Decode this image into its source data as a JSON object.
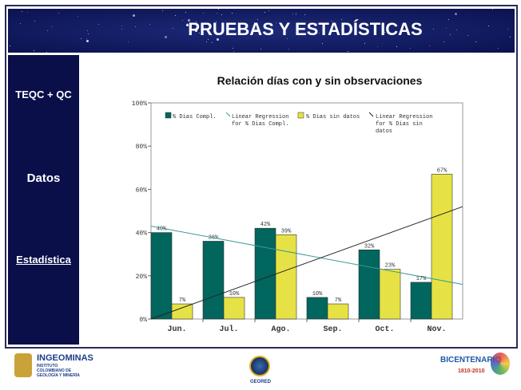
{
  "header": {
    "title": "PRUEBAS  Y ESTADÍSTICAS"
  },
  "sidebar": {
    "items": [
      {
        "label": "TEQC + QC"
      },
      {
        "label": "Datos"
      },
      {
        "label": "Estadística"
      }
    ]
  },
  "footer": {
    "logos": [
      {
        "name": "INGEOMINAS",
        "sub": "INSTITUTO COLOMBIANO DE GEOLOGÍA Y MINERÍA"
      },
      {
        "name": "GEORED"
      },
      {
        "name": "BICENTENARIO",
        "sub": "1810-2010"
      }
    ]
  },
  "colors": {
    "compl": "#00665e",
    "sin": "#e6e245",
    "reg_compl": "#3a9a96",
    "reg_sin": "#222222",
    "navy": "#0a0f4a"
  },
  "chart_data": {
    "type": "bar",
    "title": "Relación días con y sin observaciones",
    "categories": [
      "Jun.",
      "Jul.",
      "Ago.",
      "Sep.",
      "Oct.",
      "Nov."
    ],
    "ylim": [
      0,
      100
    ],
    "yticks": [
      "0%",
      "20%",
      "40%",
      "60%",
      "80%",
      "100%"
    ],
    "yticks_values": [
      0,
      20,
      40,
      60,
      80,
      100
    ],
    "series": [
      {
        "name": "% Dias Compl.",
        "values": [
          40,
          36,
          42,
          10,
          32,
          17
        ],
        "labels": [
          "40%",
          "36%",
          "42%",
          "10%",
          "32%",
          "17%"
        ]
      },
      {
        "name": "% Dias sin datos",
        "values": [
          7,
          10,
          39,
          7,
          23,
          67
        ],
        "labels": [
          "7%",
          "10%",
          "39%",
          "7%",
          "23%",
          "67%"
        ]
      }
    ],
    "regressions": [
      {
        "name": "Linear Regression for % Dias Compl.",
        "legend_lines": [
          "Linear Regression",
          "for % Dias Compl."
        ],
        "start": 43,
        "end": 16
      },
      {
        "name": "Linear Regression for % Dias sin datos",
        "legend_lines": [
          "Linear Regression",
          "for % Dias sin",
          "datos"
        ],
        "start": 0,
        "end": 52
      }
    ],
    "legend": "top"
  }
}
